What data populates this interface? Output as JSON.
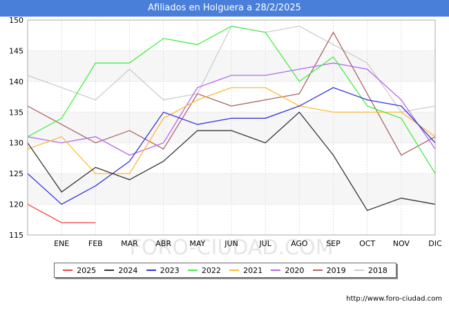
{
  "chart_data": {
    "type": "line",
    "title": "Afiliados en Holguera a 28/2/2025",
    "categories": [
      "",
      "ENE",
      "FEB",
      "MAR",
      "ABR",
      "MAY",
      "JUN",
      "JUL",
      "AGO",
      "SEP",
      "OCT",
      "NOV",
      "DIC"
    ],
    "ylim": [
      115,
      150
    ],
    "yticks": [
      115,
      120,
      125,
      130,
      135,
      140,
      145,
      150
    ],
    "grid": true,
    "legend_position": "bottom",
    "series": [
      {
        "name": "2025",
        "color": "#ee4444",
        "values": [
          120,
          117,
          117,
          null,
          null,
          null,
          null,
          null,
          null,
          null,
          null,
          null,
          null
        ]
      },
      {
        "name": "2024",
        "color": "#333333",
        "values": [
          130,
          122,
          126,
          124,
          127,
          132,
          132,
          130,
          135,
          128,
          119,
          121,
          120
        ]
      },
      {
        "name": "2023",
        "color": "#3333dd",
        "values": [
          125,
          120,
          123,
          127,
          135,
          133,
          134,
          134,
          136,
          139,
          137,
          136,
          130
        ]
      },
      {
        "name": "2022",
        "color": "#44ee44",
        "values": [
          131,
          134,
          143,
          143,
          147,
          146,
          149,
          148,
          140,
          144,
          136,
          134,
          125
        ]
      },
      {
        "name": "2021",
        "color": "#ffb833",
        "values": [
          129,
          131,
          125,
          125,
          134,
          137,
          139,
          139,
          136,
          135,
          135,
          135,
          131
        ]
      },
      {
        "name": "2020",
        "color": "#b366ee",
        "values": [
          131,
          130,
          131,
          128,
          130,
          139,
          141,
          141,
          142,
          143,
          142,
          137,
          129
        ]
      },
      {
        "name": "2019",
        "color": "#aa6666",
        "values": [
          136,
          133,
          130,
          132,
          129,
          138,
          136,
          137,
          138,
          148,
          138,
          128,
          131
        ]
      },
      {
        "name": "2018",
        "color": "#cccccc",
        "values": [
          141,
          139,
          137,
          142,
          137,
          138,
          149,
          148,
          149,
          146,
          143,
          135,
          136
        ]
      }
    ]
  },
  "footer": {
    "url": "http://www.foro-ciudad.com",
    "watermark": "FORO-CIUDAD.COM"
  }
}
